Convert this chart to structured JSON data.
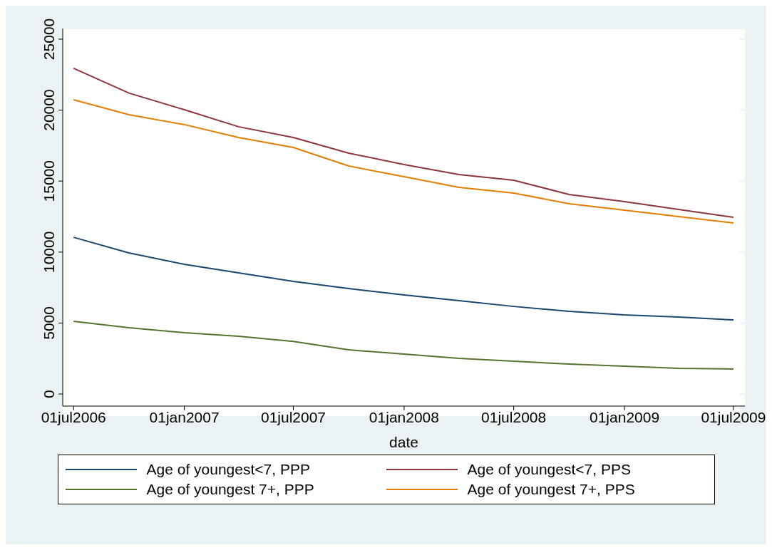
{
  "chart_data": {
    "type": "line",
    "xlabel": "date",
    "x": [
      "2006-07-01",
      "2006-10-01",
      "2007-01-01",
      "2007-04-01",
      "2007-07-01",
      "2007-10-01",
      "2008-01-01",
      "2008-04-01",
      "2008-07-01",
      "2008-10-01",
      "2009-01-01",
      "2009-04-01",
      "2009-07-01"
    ],
    "series": [
      {
        "name": "Age of youngest<7, PPP",
        "color": "#1a476f",
        "values": [
          11040,
          9940,
          9140,
          8530,
          7930,
          7430,
          6980,
          6580,
          6170,
          5820,
          5570,
          5420,
          5220
        ]
      },
      {
        "name": "Age of youngest<7, PPS",
        "color": "#90353b",
        "values": [
          22950,
          21200,
          20030,
          18830,
          18070,
          16970,
          16160,
          15460,
          15060,
          14060,
          13550,
          13000,
          12450
        ]
      },
      {
        "name": "Age of youngest 7+, PPP",
        "color": "#55752f",
        "values": [
          5120,
          4670,
          4320,
          4070,
          3710,
          3110,
          2810,
          2510,
          2310,
          2110,
          1960,
          1810,
          1760
        ]
      },
      {
        "name": "Age of youngest 7+, PPS",
        "color": "#e37e00",
        "values": [
          20730,
          19680,
          18980,
          18070,
          17370,
          16060,
          15310,
          14560,
          14160,
          13400,
          12950,
          12500,
          12050
        ]
      }
    ],
    "xlim": [
      "2006-06-13",
      "2009-07-20"
    ],
    "xticks": [
      {
        "value": "2006-07-01",
        "label": "01jul2006"
      },
      {
        "value": "2007-01-01",
        "label": "01jan2007"
      },
      {
        "value": "2007-07-01",
        "label": "01jul2007"
      },
      {
        "value": "2008-01-01",
        "label": "01jan2008"
      },
      {
        "value": "2008-07-01",
        "label": "01jul2008"
      },
      {
        "value": "2009-01-01",
        "label": "01jan2009"
      },
      {
        "value": "2009-07-01",
        "label": "01jul2009"
      }
    ],
    "ylim": [
      -850,
      25750
    ],
    "yticks": [
      0,
      5000,
      10000,
      15000,
      20000,
      25000
    ],
    "grid": "y",
    "legend": "bottom",
    "marker": "none",
    "line_style": "solid"
  }
}
